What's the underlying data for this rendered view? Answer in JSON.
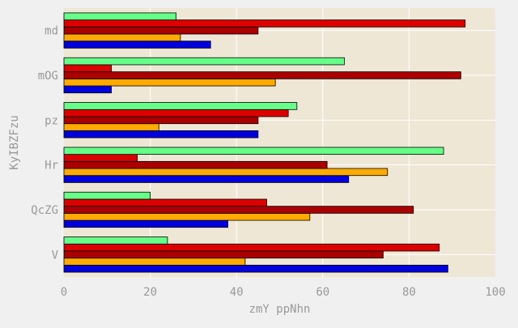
{
  "chart_data": {
    "type": "bar",
    "orientation": "horizontal",
    "title": "",
    "xlabel": "zmY ppNhn",
    "ylabel": "KyIBZFzu",
    "xlim": [
      0,
      100
    ],
    "xticks": [
      "0",
      "20",
      "40",
      "60",
      "80",
      "100"
    ],
    "categories": [
      "V",
      "QcZG",
      "Hr",
      "pz",
      "mOG",
      "md"
    ],
    "grid": true,
    "legend": "none",
    "series": [
      {
        "color": "#0000dd",
        "values": [
          89,
          38,
          66,
          45,
          11,
          34
        ]
      },
      {
        "color": "#ffaa00",
        "values": [
          42,
          57,
          75,
          22,
          49,
          27
        ]
      },
      {
        "color": "#aa0000",
        "values": [
          74,
          81,
          61,
          45,
          92,
          45
        ]
      },
      {
        "color": "#dd0000",
        "values": [
          87,
          47,
          17,
          52,
          11,
          93
        ]
      },
      {
        "color": "#66ff88",
        "values": [
          24,
          20,
          88,
          54,
          65,
          26
        ]
      }
    ],
    "colors": {
      "page_background": "#f0f0f0",
      "plot_background": "#efe7d6",
      "grid": "#ffffff",
      "text": "#999999",
      "bar_edge": "#000000"
    }
  }
}
